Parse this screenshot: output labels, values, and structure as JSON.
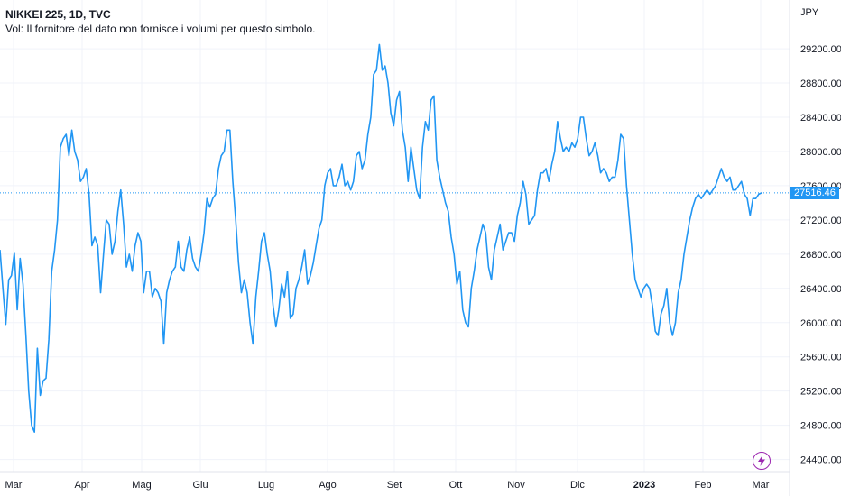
{
  "legend": {
    "line1": "NIKKEI 225, 1D, TVC",
    "line2": "Vol: Il fornitore del dato non fornisce i volumi per questo simbolo."
  },
  "currency": "JPY",
  "colors": {
    "line": "#2196f3",
    "grid": "#f0f3fa",
    "axis_text": "#131722",
    "last_price_bg": "#2196f3",
    "flash": "#9c27b0"
  },
  "icons": {
    "flash": "lightning-bolt-icon"
  },
  "chart_data": {
    "type": "line",
    "title": "NIKKEI 225, 1D, TVC",
    "xlabel": "",
    "ylabel": "",
    "ylim": [
      24300,
      29600
    ],
    "y_ticks": [
      "24400.00",
      "24800.00",
      "25200.00",
      "25600.00",
      "26000.00",
      "26400.00",
      "26800.00",
      "27200.00",
      "27600.00",
      "28000.00",
      "28400.00",
      "28800.00",
      "29200.00"
    ],
    "x_ticks": [
      "Mar",
      "Apr",
      "Mag",
      "Giu",
      "Lug",
      "Ago",
      "Set",
      "Ott",
      "Nov",
      "Dic",
      "2023",
      "Feb",
      "Mar"
    ],
    "last_value": "27516.46",
    "grid": true,
    "series": [
      {
        "values": [
          26850,
          26400,
          25980,
          26500,
          26550,
          26820,
          26150,
          26750,
          26450,
          25850,
          25200,
          24800,
          24720,
          25700,
          25150,
          25320,
          25350,
          25800,
          26600,
          26850,
          27200,
          28050,
          28150,
          28200,
          27950,
          28250,
          28000,
          27900,
          27650,
          27700,
          27800,
          27500,
          26900,
          27000,
          26900,
          26350,
          26800,
          27200,
          27150,
          26800,
          26950,
          27300,
          27550,
          27150,
          26650,
          26800,
          26600,
          26900,
          27050,
          26950,
          26350,
          26600,
          26600,
          26300,
          26400,
          26350,
          26250,
          25750,
          26350,
          26500,
          26600,
          26650,
          26950,
          26650,
          26600,
          26850,
          27000,
          26750,
          26650,
          26600,
          26800,
          27050,
          27450,
          27350,
          27450,
          27500,
          27800,
          27950,
          28000,
          28250,
          28250,
          27650,
          27200,
          26700,
          26350,
          26500,
          26350,
          26000,
          25750,
          26300,
          26600,
          26950,
          27050,
          26800,
          26600,
          26200,
          25950,
          26150,
          26450,
          26300,
          26600,
          26050,
          26100,
          26400,
          26500,
          26650,
          26850,
          26450,
          26550,
          26700,
          26900,
          27100,
          27200,
          27600,
          27750,
          27800,
          27600,
          27600,
          27700,
          27850,
          27600,
          27650,
          27550,
          27650,
          27950,
          28000,
          27800,
          27900,
          28200,
          28400,
          28900,
          28950,
          29250,
          28950,
          29000,
          28800,
          28450,
          28300,
          28600,
          28700,
          28250,
          28050,
          27650,
          28050,
          27800,
          27550,
          27450,
          28050,
          28350,
          28250,
          28600,
          28650,
          27900,
          27700,
          27550,
          27400,
          27300,
          27000,
          26800,
          26450,
          26600,
          26150,
          26000,
          25950,
          26400,
          26600,
          26850,
          27000,
          27150,
          27050,
          26650,
          26500,
          26850,
          27000,
          27150,
          26850,
          26950,
          27050,
          27050,
          26950,
          27250,
          27400,
          27650,
          27500,
          27150,
          27200,
          27250,
          27550,
          27750,
          27750,
          27800,
          27650,
          27850,
          28000,
          28350,
          28150,
          28000,
          28050,
          28000,
          28100,
          28050,
          28150,
          28400,
          28400,
          28150,
          27950,
          28000,
          28100,
          27950,
          27750,
          27800,
          27750,
          27650,
          27700,
          27700,
          27900,
          28200,
          28150,
          27600,
          27200,
          26800,
          26500,
          26400,
          26300,
          26400,
          26450,
          26400,
          26200,
          25900,
          25850,
          26100,
          26200,
          26400,
          26000,
          25850,
          26000,
          26350,
          26500,
          26800,
          27000,
          27200,
          27350,
          27450,
          27500,
          27450,
          27500,
          27550,
          27500,
          27550,
          27600,
          27700,
          27800,
          27700,
          27650,
          27700,
          27550,
          27550,
          27600,
          27650,
          27500,
          27450,
          27250,
          27450,
          27450,
          27500,
          27516
        ]
      }
    ]
  }
}
